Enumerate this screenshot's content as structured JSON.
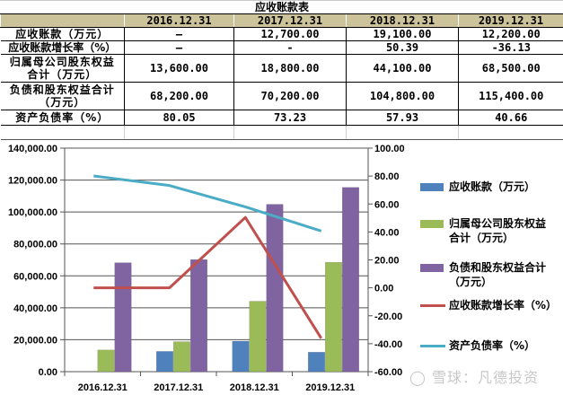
{
  "table": {
    "title": "应收账款表",
    "columns": [
      "",
      "2016.12.31",
      "2017.12.31",
      "2018.12.31",
      "2019.12.31"
    ],
    "rows": [
      {
        "label": "应收账款（万元）",
        "values": [
          "—",
          "12,700.00",
          "19,100.00",
          "12,200.00"
        ]
      },
      {
        "label": "应收账款增长率（%）",
        "values": [
          "—",
          "-",
          "50.39",
          "-36.13"
        ]
      },
      {
        "label_line1": "归属母公司股东权益",
        "label_line2": "合计（万元）",
        "values": [
          "13,600.00",
          "18,800.00",
          "44,100.00",
          "68,500.00"
        ]
      },
      {
        "label_line1": "负债和股东权益合计",
        "label_line2": "（万元）",
        "values": [
          "68,200.00",
          "70,200.00",
          "104,800.00",
          "115,400.00"
        ]
      },
      {
        "label": "资产负债率（%）",
        "values": [
          "80.05",
          "73.23",
          "57.93",
          "40.66"
        ]
      }
    ]
  },
  "chart_data": {
    "type": "bar",
    "title": "",
    "categories": [
      "2016.12.31",
      "2017.12.31",
      "2018.12.31",
      "2019.12.31"
    ],
    "series": [
      {
        "name": "应收账款（万元）",
        "type": "bar",
        "axis": "left",
        "color": "#4f81bd",
        "values": [
          0,
          12700,
          19100,
          12200
        ]
      },
      {
        "name": "归属母公司股东权益合计（万元）",
        "type": "bar",
        "axis": "left",
        "color": "#9bbb59",
        "values": [
          13600,
          18800,
          44100,
          68500
        ]
      },
      {
        "name": "负债和股东权益合计（万元）",
        "type": "bar",
        "axis": "left",
        "color": "#8064a2",
        "values": [
          68200,
          70200,
          104800,
          115400
        ]
      },
      {
        "name": "应收账款增长率（%）",
        "type": "line",
        "axis": "right",
        "color": "#c0504d",
        "values": [
          0,
          0,
          50.39,
          -36.13
        ]
      },
      {
        "name": "资产负债率（%）",
        "type": "line",
        "axis": "right",
        "color": "#4bacc6",
        "values": [
          80.05,
          73.23,
          57.93,
          40.66
        ]
      }
    ],
    "left_axis": {
      "ylim": [
        0,
        140000
      ],
      "ticks": [
        "0.00",
        "20,000.00",
        "40,000.00",
        "60,000.00",
        "80,000.00",
        "100,000.00",
        "120,000.00",
        "140,000.00"
      ]
    },
    "right_axis": {
      "ylim": [
        -60,
        100
      ],
      "ticks": [
        "-60.00",
        "-40.00",
        "-20.00",
        "0.00",
        "20.00",
        "40.00",
        "60.00",
        "80.00",
        "100.00"
      ]
    },
    "grid": true,
    "legend_position": "right"
  },
  "legend": {
    "items": [
      {
        "line1": "应收账款（万元）",
        "line2": ""
      },
      {
        "line1": "归属母公司股东权益",
        "line2": "合计（万元）"
      },
      {
        "line1": "负债和股东权益合计",
        "line2": "（万元）"
      },
      {
        "line1": "应收账款增长率（%）",
        "line2": ""
      },
      {
        "line1": "资产负债率（%）",
        "line2": ""
      }
    ]
  },
  "watermark": "雪球：凡德投资"
}
